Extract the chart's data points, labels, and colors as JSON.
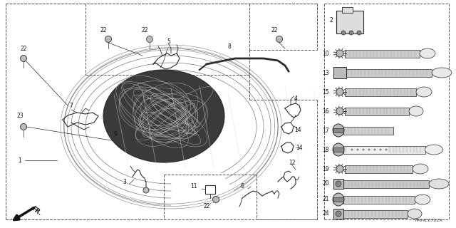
{
  "bg_color": "#ffffff",
  "diagram_code": "TP64E0702A",
  "line_color": "#2a2a2a",
  "text_color": "#111111",
  "dash_color": "#555555",
  "gray_fill": "#bbbbbb",
  "light_gray": "#dddddd",
  "dark_gray": "#888888"
}
